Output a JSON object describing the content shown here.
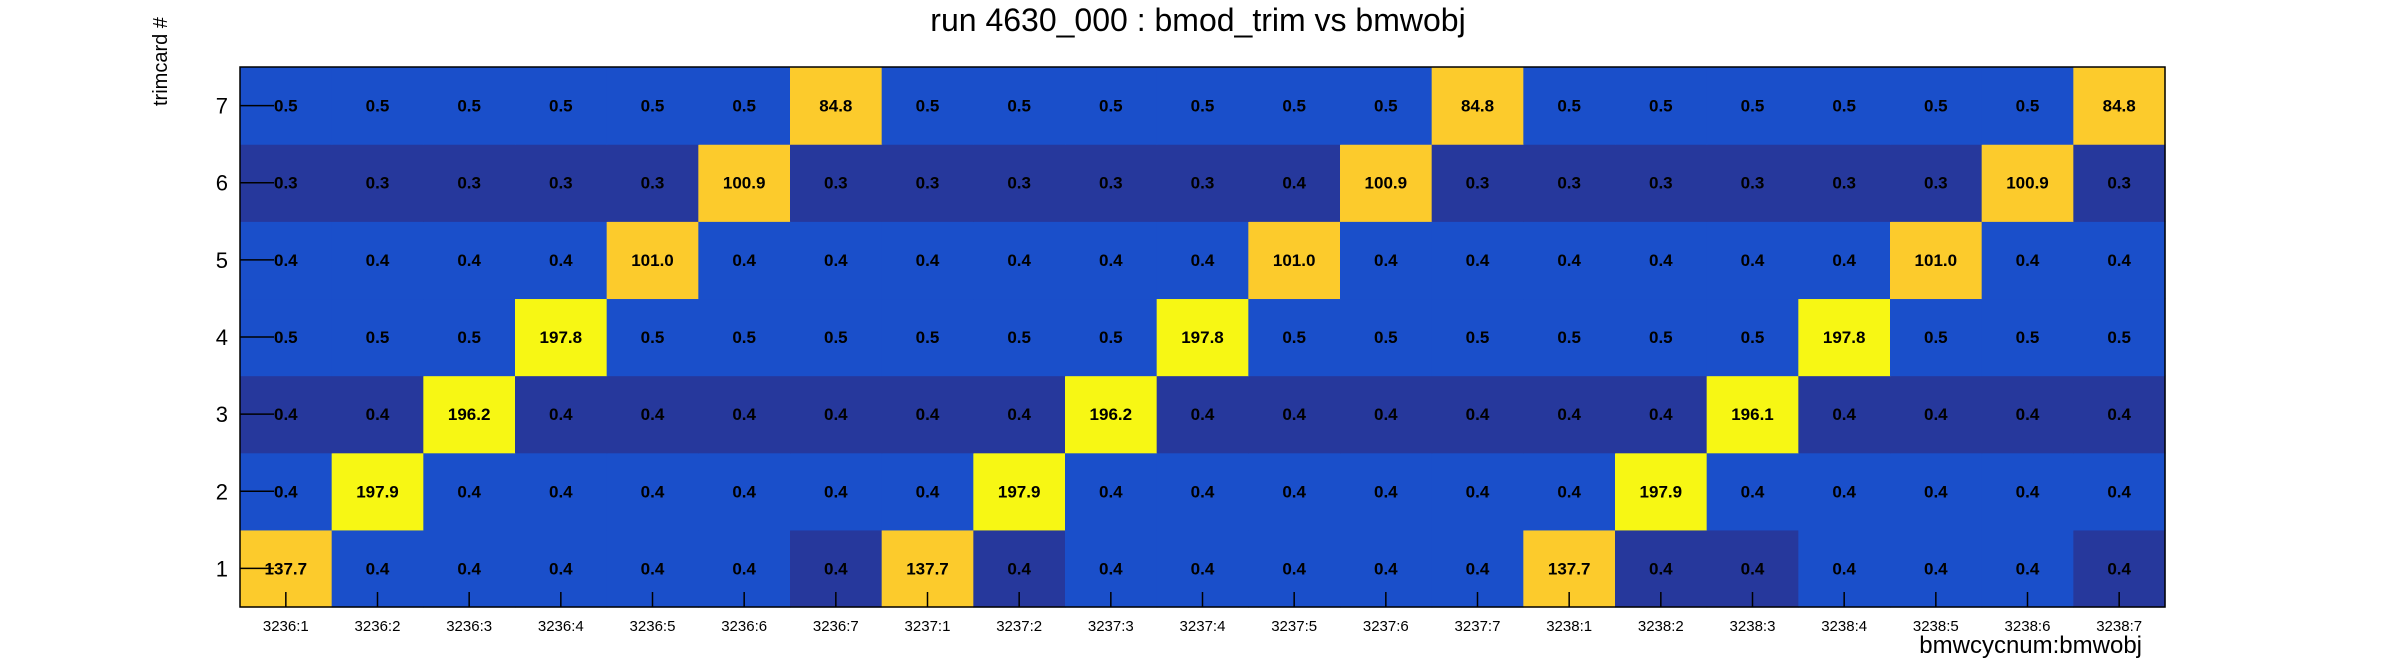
{
  "chart_data": {
    "type": "heatmap",
    "title": "run 4630_000 : bmod_trim vs bmwobj",
    "xlabel": "bmwcycnum:bmwobj",
    "ylabel": "trimcard #",
    "x_categories": [
      "3236:1",
      "3236:2",
      "3236:3",
      "3236:4",
      "3236:5",
      "3236:6",
      "3236:7",
      "3237:1",
      "3237:2",
      "3237:3",
      "3237:4",
      "3237:5",
      "3237:6",
      "3237:7",
      "3238:1",
      "3238:2",
      "3238:3",
      "3238:4",
      "3238:5",
      "3238:6",
      "3238:7"
    ],
    "y_categories": [
      "1",
      "2",
      "3",
      "4",
      "5",
      "6",
      "7"
    ],
    "rows": [
      {
        "y": "1",
        "values": [
          "137.7",
          "0.4",
          "0.4",
          "0.4",
          "0.4",
          "0.4",
          "0.4",
          "137.7",
          "0.4",
          "0.4",
          "0.4",
          "0.4",
          "0.4",
          "0.4",
          "137.7",
          "0.4",
          "0.4",
          "0.4",
          "0.4",
          "0.4",
          "0.4"
        ]
      },
      {
        "y": "2",
        "values": [
          "0.4",
          "197.9",
          "0.4",
          "0.4",
          "0.4",
          "0.4",
          "0.4",
          "0.4",
          "197.9",
          "0.4",
          "0.4",
          "0.4",
          "0.4",
          "0.4",
          "0.4",
          "197.9",
          "0.4",
          "0.4",
          "0.4",
          "0.4",
          "0.4"
        ]
      },
      {
        "y": "3",
        "values": [
          "0.4",
          "0.4",
          "196.2",
          "0.4",
          "0.4",
          "0.4",
          "0.4",
          "0.4",
          "0.4",
          "196.2",
          "0.4",
          "0.4",
          "0.4",
          "0.4",
          "0.4",
          "0.4",
          "196.1",
          "0.4",
          "0.4",
          "0.4",
          "0.4"
        ]
      },
      {
        "y": "4",
        "values": [
          "0.5",
          "0.5",
          "0.5",
          "197.8",
          "0.5",
          "0.5",
          "0.5",
          "0.5",
          "0.5",
          "0.5",
          "197.8",
          "0.5",
          "0.5",
          "0.5",
          "0.5",
          "0.5",
          "0.5",
          "197.8",
          "0.5",
          "0.5",
          "0.5"
        ]
      },
      {
        "y": "5",
        "values": [
          "0.4",
          "0.4",
          "0.4",
          "0.4",
          "101.0",
          "0.4",
          "0.4",
          "0.4",
          "0.4",
          "0.4",
          "0.4",
          "101.0",
          "0.4",
          "0.4",
          "0.4",
          "0.4",
          "0.4",
          "0.4",
          "101.0",
          "0.4",
          "0.4"
        ]
      },
      {
        "y": "6",
        "values": [
          "0.3",
          "0.3",
          "0.3",
          "0.3",
          "0.3",
          "100.9",
          "0.3",
          "0.3",
          "0.3",
          "0.3",
          "0.3",
          "0.4",
          "100.9",
          "0.3",
          "0.3",
          "0.3",
          "0.3",
          "0.3",
          "0.3",
          "100.9",
          "0.3"
        ]
      },
      {
        "y": "7",
        "values": [
          "0.5",
          "0.5",
          "0.5",
          "0.5",
          "0.5",
          "0.5",
          "84.8",
          "0.5",
          "0.5",
          "0.5",
          "0.5",
          "0.5",
          "0.5",
          "84.8",
          "0.5",
          "0.5",
          "0.5",
          "0.5",
          "0.5",
          "0.5",
          "84.8"
        ]
      }
    ],
    "colors": {
      "low_dark": "#26389c",
      "low": "#1a4fca",
      "mid": "#fccb2c",
      "high": "#f7f714",
      "text": "#000000"
    },
    "dark_cells": [
      {
        "y": "3",
        "x": "all_low"
      },
      {
        "y": "6",
        "x": "all_low"
      },
      {
        "y": "1",
        "x": [
          "3236:7",
          "3237:2",
          "3238:2",
          "3238:3",
          "3238:7"
        ]
      }
    ]
  }
}
